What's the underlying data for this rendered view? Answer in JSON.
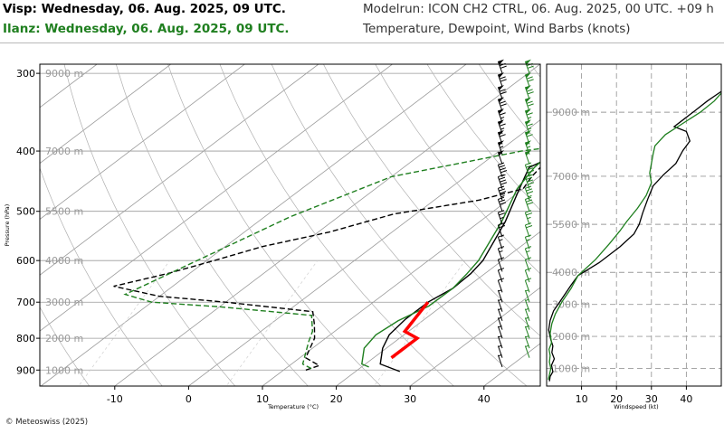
{
  "header": {
    "station1": "Visp: Wednesday, 06. Aug. 2025, 09 UTC.",
    "station2": "Ilanz: Wednesday, 06. Aug. 2025, 09 UTC.",
    "modelrun": "Modelrun: ICON CH2 CTRL, 06. Aug. 2025, 00 UTC. +09 h",
    "subtitle": "Temperature, Dewpoint, Wind Barbs (knots)"
  },
  "footer": {
    "copyright": "© Meteoswiss (2025)"
  },
  "colors": {
    "visp": "#000000",
    "ilanz": "#1f7f1f",
    "cape": "#ff0000",
    "grid": "#9a9a9a",
    "frame": "#000000"
  },
  "chart_data": [
    {
      "type": "line",
      "subtype": "skew-T log-p diagram",
      "xlabel": "Temperature (°C)",
      "ylabel": "Pressure (hPa)",
      "xlim": [
        -20,
        47
      ],
      "ylim": [
        955,
        290
      ],
      "y_scale": "log",
      "x_ticks": [
        "-10",
        "0",
        "10",
        "20",
        "30",
        "40"
      ],
      "y_ticks": [
        "300",
        "400",
        "500",
        "600",
        "700",
        "800",
        "900"
      ],
      "altitude_labels": [
        {
          "p": 300,
          "label": "9000 m"
        },
        {
          "p": 400,
          "label": "7000 m"
        },
        {
          "p": 500,
          "label": "5500 m"
        },
        {
          "p": 600,
          "label": "4000 m"
        },
        {
          "p": 700,
          "label": "3000 m"
        },
        {
          "p": 800,
          "label": "2000 m"
        },
        {
          "p": 900,
          "label": "1000 m"
        }
      ],
      "series": [
        {
          "name": "Visp",
          "kind": "temperature",
          "color": "#000000",
          "dash": "solid",
          "points": [
            [
              26,
              905
            ],
            [
              22,
              880
            ],
            [
              19.5,
              830
            ],
            [
              18,
              790
            ],
            [
              17.4,
              745
            ],
            [
              17.4,
              700
            ],
            [
              18.3,
              665
            ],
            [
              18.1,
              630
            ],
            [
              17.4,
              600
            ],
            [
              13.5,
              520
            ],
            [
              9.5,
              460
            ],
            [
              7,
              425
            ],
            [
              8.5,
              405
            ],
            [
              8,
              395
            ],
            [
              8.4,
              380
            ],
            [
              7.5,
              340
            ],
            [
              5.5,
              300
            ],
            [
              4.5,
              290
            ]
          ]
        },
        {
          "name": "Ilanz",
          "kind": "temperature",
          "color": "#1f7f1f",
          "dash": "solid",
          "points": [
            [
              21,
              890
            ],
            [
              19.5,
              880
            ],
            [
              17,
              830
            ],
            [
              16.2,
              790
            ],
            [
              16.7,
              750
            ],
            [
              18.2,
              710
            ],
            [
              18.3,
              665
            ],
            [
              17.6,
              630
            ],
            [
              16.8,
              600
            ],
            [
              13,
              520
            ],
            [
              9.2,
              460
            ],
            [
              7.7,
              425
            ],
            [
              7.2,
              400
            ],
            [
              7.8,
              380
            ],
            [
              7.2,
              340
            ],
            [
              7.2,
              300
            ],
            [
              5.4,
              290
            ]
          ]
        },
        {
          "name": "Visp",
          "kind": "dewpoint",
          "color": "#000000",
          "dash": "dashed",
          "points": [
            [
              13,
              900
            ],
            [
              14,
              885
            ],
            [
              10.8,
              860
            ],
            [
              8.5,
              800
            ],
            [
              6,
              760
            ],
            [
              3.5,
              725
            ],
            [
              -10,
              700
            ],
            [
              -20,
              685
            ],
            [
              -28,
              660
            ],
            [
              -23,
              630
            ],
            [
              -19,
              600
            ],
            [
              -15,
              570
            ],
            [
              -8.5,
              540
            ],
            [
              -3,
              505
            ],
            [
              6,
              480
            ],
            [
              10,
              460
            ],
            [
              9,
              440
            ],
            [
              8,
              410
            ],
            [
              5,
              395
            ],
            [
              8,
              380
            ],
            [
              1,
              350
            ],
            [
              4,
              320
            ],
            [
              7.5,
              290
            ]
          ]
        },
        {
          "name": "Ilanz",
          "kind": "dewpoint",
          "color": "#1f7f1f",
          "dash": "dashed",
          "points": [
            [
              13.5,
              895
            ],
            [
              11.5,
              880
            ],
            [
              8.3,
              810
            ],
            [
              7,
              780
            ],
            [
              4,
              735
            ],
            [
              -10,
              712
            ],
            [
              -20,
              700
            ],
            [
              -25,
              680
            ],
            [
              -16.5,
              510
            ],
            [
              -10,
              440
            ],
            [
              3,
              400
            ],
            [
              6,
              395
            ],
            [
              8,
              360
            ],
            [
              5.5,
              320
            ],
            [
              5.5,
              300
            ],
            [
              4.5,
              290
            ]
          ]
        },
        {
          "name": "",
          "kind": "parcel",
          "color": "#ff0000",
          "dash": "solid",
          "points": [
            [
              22.4,
              860
            ],
            [
              22.4,
              800
            ],
            [
              19.5,
              780
            ],
            [
              17.4,
              700
            ]
          ]
        }
      ],
      "wind_barbs": {
        "Visp": [
          {
            "p": 300,
            "speed": 70
          },
          {
            "p": 315,
            "speed": 70
          },
          {
            "p": 330,
            "speed": 70
          },
          {
            "p": 345,
            "speed": 70
          },
          {
            "p": 360,
            "speed": 65
          },
          {
            "p": 375,
            "speed": 65
          },
          {
            "p": 390,
            "speed": 60
          },
          {
            "p": 405,
            "speed": 55
          },
          {
            "p": 420,
            "speed": 50
          },
          {
            "p": 440,
            "speed": 45
          },
          {
            "p": 460,
            "speed": 40
          },
          {
            "p": 480,
            "speed": 35
          },
          {
            "p": 500,
            "speed": 30
          },
          {
            "p": 525,
            "speed": 25
          },
          {
            "p": 550,
            "speed": 20
          },
          {
            "p": 575,
            "speed": 15
          },
          {
            "p": 600,
            "speed": 15
          },
          {
            "p": 625,
            "speed": 10
          },
          {
            "p": 650,
            "speed": 10
          },
          {
            "p": 675,
            "speed": 10
          },
          {
            "p": 700,
            "speed": 5
          },
          {
            "p": 725,
            "speed": 5
          },
          {
            "p": 750,
            "speed": 5
          },
          {
            "p": 775,
            "speed": 5
          },
          {
            "p": 800,
            "speed": 5
          },
          {
            "p": 830,
            "speed": 5
          },
          {
            "p": 860,
            "speed": 5
          },
          {
            "p": 890,
            "speed": 5
          }
        ],
        "Ilanz": [
          {
            "p": 300,
            "speed": 70
          },
          {
            "p": 315,
            "speed": 70
          },
          {
            "p": 330,
            "speed": 70
          },
          {
            "p": 345,
            "speed": 70
          },
          {
            "p": 360,
            "speed": 65
          },
          {
            "p": 375,
            "speed": 65
          },
          {
            "p": 390,
            "speed": 60
          },
          {
            "p": 405,
            "speed": 55
          },
          {
            "p": 420,
            "speed": 50
          },
          {
            "p": 440,
            "speed": 45
          },
          {
            "p": 460,
            "speed": 40
          },
          {
            "p": 480,
            "speed": 35
          },
          {
            "p": 500,
            "speed": 30
          },
          {
            "p": 525,
            "speed": 25
          },
          {
            "p": 550,
            "speed": 20
          },
          {
            "p": 575,
            "speed": 15
          },
          {
            "p": 600,
            "speed": 15
          },
          {
            "p": 625,
            "speed": 10
          },
          {
            "p": 650,
            "speed": 10
          },
          {
            "p": 675,
            "speed": 10
          },
          {
            "p": 700,
            "speed": 5
          },
          {
            "p": 725,
            "speed": 5
          },
          {
            "p": 750,
            "speed": 5
          },
          {
            "p": 775,
            "speed": 5
          },
          {
            "p": 800,
            "speed": 5
          },
          {
            "p": 830,
            "speed": 5
          },
          {
            "p": 860,
            "speed": 5
          }
        ]
      }
    },
    {
      "type": "line",
      "subtype": "wind speed profile",
      "xlabel": "Windspeed (kt)",
      "ylabel": "",
      "xlim": [
        0,
        50
      ],
      "ylim": [
        450,
        10500
      ],
      "x_ticks": [
        "10",
        "20",
        "30",
        "40"
      ],
      "y_ticks": [
        "1000 m",
        "2000 m",
        "3000 m",
        "4000 m",
        "5500 m",
        "7000 m",
        "9000 m"
      ],
      "grid": true,
      "series": [
        {
          "name": "Visp",
          "color": "#000000",
          "points": [
            [
              0.8,
              600
            ],
            [
              1,
              750
            ],
            [
              1.8,
              900
            ],
            [
              1.4,
              1100
            ],
            [
              2.2,
              1300
            ],
            [
              1.5,
              1500
            ],
            [
              1.8,
              1700
            ],
            [
              1.2,
              1900
            ],
            [
              0.6,
              2200
            ],
            [
              1,
              2500
            ],
            [
              2,
              2800
            ],
            [
              4.5,
              3200
            ],
            [
              7,
              3600
            ],
            [
              9,
              3900
            ],
            [
              15,
              4300
            ],
            [
              21,
              4800
            ],
            [
              25,
              5200
            ],
            [
              26.5,
              5500
            ],
            [
              27.5,
              5850
            ],
            [
              29,
              6300
            ],
            [
              30.5,
              6700
            ],
            [
              33.5,
              7050
            ],
            [
              37,
              7400
            ],
            [
              39,
              7800
            ],
            [
              41,
              8100
            ],
            [
              40,
              8400
            ],
            [
              36.5,
              8550
            ],
            [
              39.5,
              8800
            ],
            [
              42.5,
              9050
            ],
            [
              46,
              9350
            ],
            [
              50,
              9650
            ]
          ]
        },
        {
          "name": "Ilanz",
          "color": "#1f7f1f",
          "points": [
            [
              0.5,
              650
            ],
            [
              0.8,
              800
            ],
            [
              1.2,
              1000
            ],
            [
              0.8,
              1200
            ],
            [
              1,
              1400
            ],
            [
              0.7,
              1600
            ],
            [
              1.4,
              1800
            ],
            [
              1,
              2100
            ],
            [
              1.5,
              2400
            ],
            [
              2.5,
              2700
            ],
            [
              4.5,
              3100
            ],
            [
              7,
              3500
            ],
            [
              9,
              3900
            ],
            [
              14,
              4400
            ],
            [
              18,
              4900
            ],
            [
              21,
              5300
            ],
            [
              23,
              5600
            ],
            [
              26,
              6000
            ],
            [
              28.5,
              6400
            ],
            [
              30,
              6800
            ],
            [
              29.5,
              7100
            ],
            [
              30,
              7400
            ],
            [
              30.5,
              7700
            ],
            [
              31,
              7950
            ],
            [
              34,
              8300
            ],
            [
              39,
              8650
            ],
            [
              44,
              9000
            ],
            [
              48,
              9350
            ],
            [
              50,
              9600
            ]
          ]
        }
      ]
    }
  ]
}
